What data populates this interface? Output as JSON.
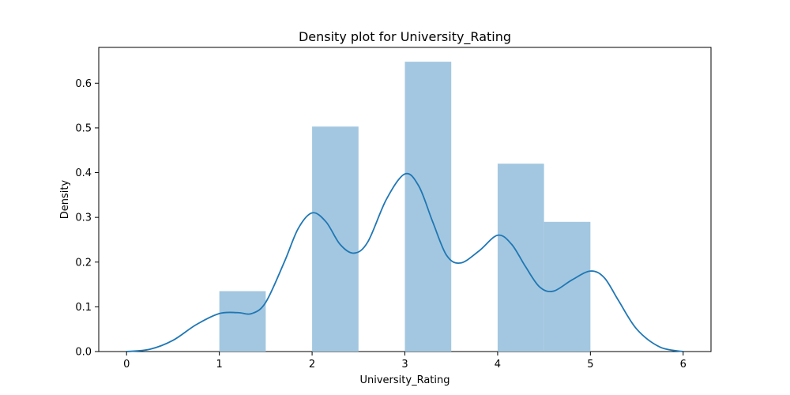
{
  "chart_data": {
    "type": "bar",
    "title": "Density plot for University_Rating",
    "xlabel": "University_Rating",
    "ylabel": "Density",
    "xlim": [
      -0.3,
      6.3
    ],
    "ylim": [
      0,
      0.68
    ],
    "xticks": [
      0,
      1,
      2,
      3,
      4,
      5,
      6
    ],
    "yticks": [
      0.0,
      0.1,
      0.2,
      0.3,
      0.4,
      0.5,
      0.6
    ],
    "grid": false,
    "legend": "none",
    "histogram": {
      "bin_edges": [
        1.0,
        1.5,
        2.0,
        2.5,
        3.0,
        3.5,
        4.0,
        4.5,
        5.0
      ],
      "densities": [
        0.135,
        0.0,
        0.503,
        0.0,
        0.648,
        0.0,
        0.42,
        0.29
      ],
      "color": "#a3c7e0"
    },
    "kde": {
      "color": "#1f77b4",
      "x": [
        0,
        0.25,
        0.5,
        0.75,
        1.0,
        1.2,
        1.35,
        1.5,
        1.7,
        1.85,
        2.0,
        2.15,
        2.3,
        2.45,
        2.6,
        2.8,
        3.0,
        3.15,
        3.3,
        3.45,
        3.6,
        3.8,
        4.0,
        4.15,
        4.3,
        4.45,
        4.6,
        4.8,
        5.0,
        5.15,
        5.3,
        5.5,
        5.75,
        6.0
      ],
      "y": [
        0.0,
        0.005,
        0.025,
        0.06,
        0.085,
        0.087,
        0.085,
        0.11,
        0.2,
        0.275,
        0.31,
        0.29,
        0.24,
        0.22,
        0.245,
        0.34,
        0.397,
        0.37,
        0.29,
        0.215,
        0.198,
        0.225,
        0.26,
        0.24,
        0.19,
        0.145,
        0.135,
        0.16,
        0.18,
        0.165,
        0.115,
        0.05,
        0.01,
        0.0
      ]
    }
  }
}
